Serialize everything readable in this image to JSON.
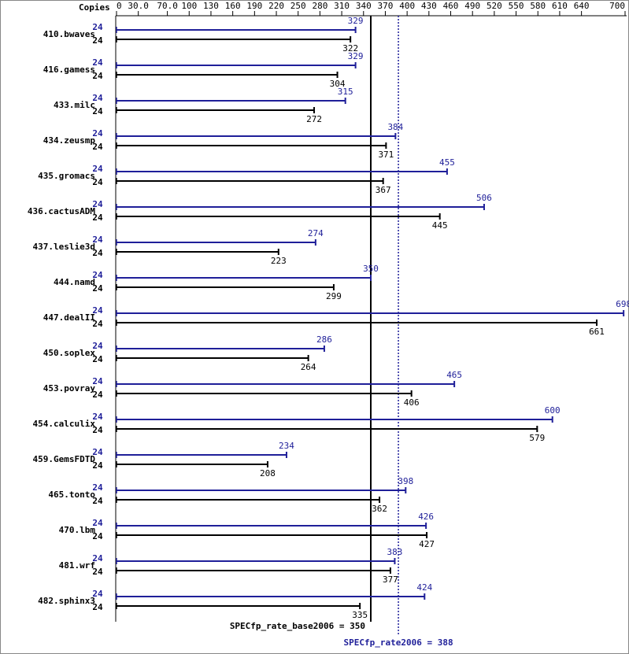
{
  "chart_data": {
    "type": "bar",
    "copies_header": "Copies",
    "categories": [
      "410.bwaves",
      "416.gamess",
      "433.milc",
      "434.zeusmp",
      "435.gromacs",
      "436.cactusADM",
      "437.leslie3d",
      "444.namd",
      "447.dealII",
      "450.soplex",
      "453.povray",
      "454.calculix",
      "459.GemsFDTD",
      "465.tonto",
      "470.lbm",
      "481.wrf",
      "482.sphinx3"
    ],
    "series": [
      {
        "color": "#1f1f99",
        "copies": [
          24,
          24,
          24,
          24,
          24,
          24,
          24,
          24,
          24,
          24,
          24,
          24,
          24,
          24,
          24,
          24,
          24
        ],
        "values": [
          329,
          329,
          315,
          384,
          455,
          506,
          274,
          350,
          698,
          286,
          465,
          600,
          234,
          398,
          426,
          383,
          424
        ]
      },
      {
        "color": "#000000",
        "copies": [
          24,
          24,
          24,
          24,
          24,
          24,
          24,
          24,
          24,
          24,
          24,
          24,
          24,
          24,
          24,
          24,
          24
        ],
        "values": [
          322,
          304,
          272,
          371,
          367,
          445,
          223,
          299,
          661,
          264,
          406,
          579,
          208,
          362,
          427,
          377,
          335
        ]
      }
    ],
    "xlim": [
      0,
      700
    ],
    "xticks": [
      0,
      {
        "value": 30,
        "label": "30.0"
      },
      {
        "value": 70,
        "label": "70.0"
      },
      100,
      130,
      160,
      190,
      220,
      250,
      280,
      310,
      340,
      370,
      400,
      430,
      460,
      490,
      520,
      550,
      580,
      610,
      640,
      700
    ],
    "annotations": [
      {
        "text": "SPECfp_rate_base2006 = 350",
        "value": 350,
        "color": "#000000",
        "dashed": false
      },
      {
        "text": "SPECfp_rate2006 = 388",
        "value": 388,
        "color": "#1f1f99",
        "dashed": true
      }
    ]
  }
}
